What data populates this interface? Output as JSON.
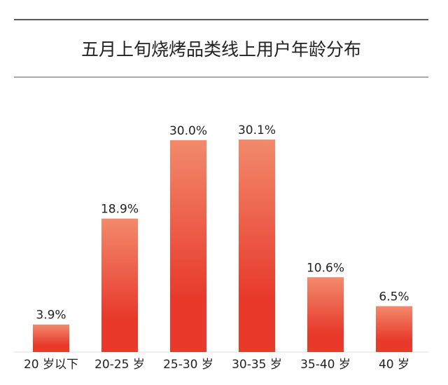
{
  "chart_data": {
    "type": "bar",
    "title": "五月上旬烧烤品类线上用户年龄分布",
    "categories": [
      "20 岁以下",
      "20-25 岁",
      "25-30 岁",
      "30-35 岁",
      "35-40 岁",
      "40 岁"
    ],
    "values": [
      3.9,
      18.9,
      30.0,
      30.1,
      10.6,
      6.5
    ],
    "value_labels": [
      "3.9%",
      "18.9%",
      "30.0%",
      "30.1%",
      "10.6%",
      "6.5%"
    ],
    "color": "#e8392b"
  }
}
